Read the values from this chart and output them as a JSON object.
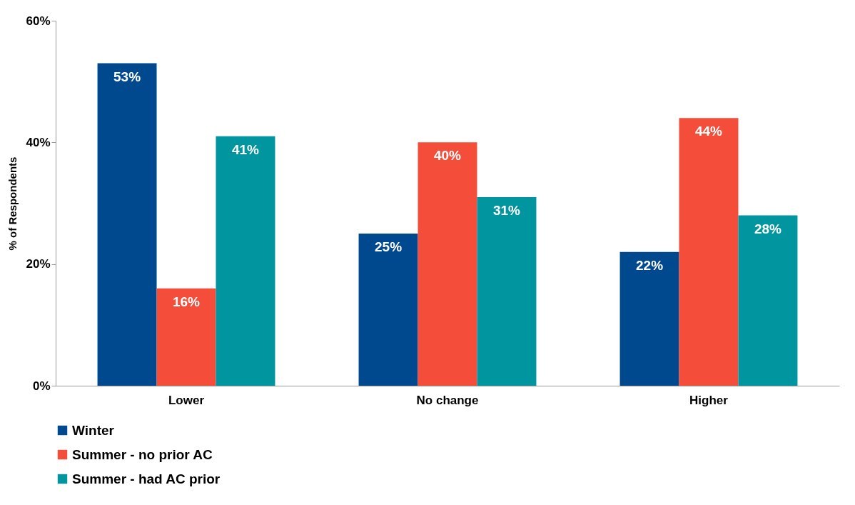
{
  "chart_data": {
    "type": "bar",
    "ylabel": "% of Respondents",
    "categories": [
      "Lower",
      "No change",
      "Higher"
    ],
    "series": [
      {
        "name": "Winter",
        "color": "#00498f",
        "values": [
          53,
          25,
          22
        ],
        "value_labels": [
          "53%",
          "25%",
          "22%"
        ]
      },
      {
        "name": "Summer - no prior AC",
        "color": "#f44d39",
        "values": [
          16,
          40,
          44
        ],
        "value_labels": [
          "16%",
          "40%",
          "44%"
        ]
      },
      {
        "name": "Summer - had AC prior",
        "color": "#00959f",
        "values": [
          41,
          31,
          28
        ],
        "value_labels": [
          "41%",
          "31%",
          "28%"
        ]
      }
    ],
    "ylim": [
      0,
      60
    ],
    "yticks": [
      {
        "value": 0,
        "label": "0%"
      },
      {
        "value": 20,
        "label": "20%"
      },
      {
        "value": 40,
        "label": "40%"
      },
      {
        "value": 60,
        "label": "60%"
      }
    ],
    "grid": false,
    "legend": "bottom"
  }
}
